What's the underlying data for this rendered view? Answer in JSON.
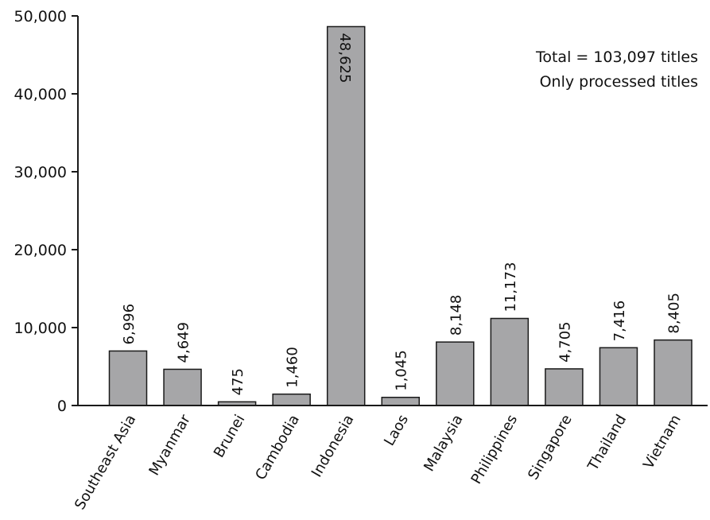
{
  "chart_data": {
    "type": "bar",
    "categories": [
      "Southeast Asia",
      "Myanmar",
      "Brunei",
      "Cambodia",
      "Indonesia",
      "Laos",
      "Malaysia",
      "Philippines",
      "Singapore",
      "Thailand",
      "Vietnam"
    ],
    "values": [
      6996,
      4649,
      475,
      1460,
      48625,
      1045,
      8148,
      11173,
      4705,
      7416,
      8405
    ],
    "value_labels": [
      "6,996",
      "4,649",
      "475",
      "1,460",
      "48,625",
      "1,045",
      "8,148",
      "11,173",
      "4,705",
      "7,416",
      "8,405"
    ],
    "ylim": [
      0,
      50000
    ],
    "yticks": [
      0,
      10000,
      20000,
      30000,
      40000,
      50000
    ],
    "ytick_labels": [
      "0",
      "10,000",
      "20,000",
      "30,000",
      "40,000",
      "50,000"
    ],
    "annotations": [
      "Total = 103,097 titles",
      "Only processed titles"
    ],
    "title": "",
    "xlabel": "",
    "ylabel": "",
    "grid": false,
    "legend": "none",
    "colors": {
      "bar_fill": "#a6a6a8",
      "bar_stroke": "#1a1a1a",
      "axis": "#1a1a1a"
    }
  }
}
